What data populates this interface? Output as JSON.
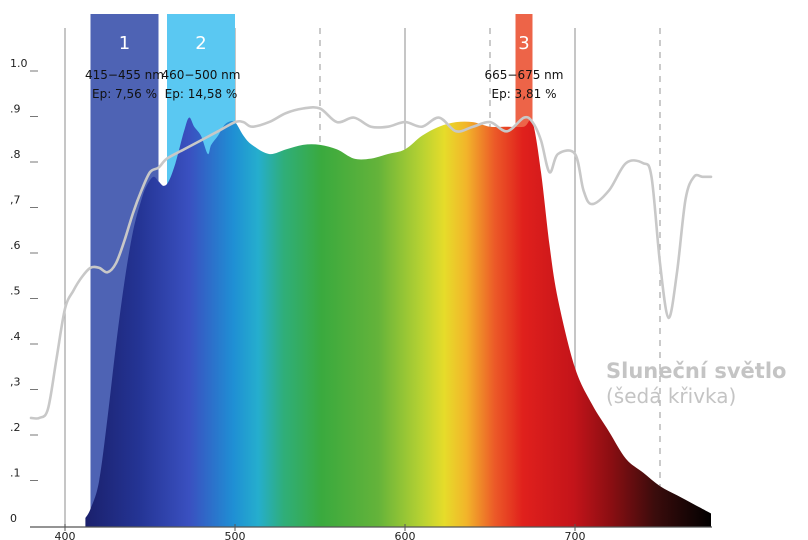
{
  "chart_data": {
    "type": "area",
    "x_axis": {
      "ticks": [
        400,
        500,
        600,
        700
      ],
      "range": [
        380,
        780
      ]
    },
    "y_axis": {
      "ticks": [
        "0",
        ".1",
        ".2",
        ",3",
        ".4",
        ".5",
        ".6",
        ",7",
        ".8",
        ".9",
        "1.0"
      ],
      "range": [
        0,
        1.0
      ]
    },
    "grid": "vertical",
    "bands": [
      {
        "number": "1",
        "range_label": "415−455 nm",
        "ep_label": "Ep: 7,56 %",
        "x_start": 415,
        "x_end": 455,
        "color": "#4e63b4"
      },
      {
        "number": "2",
        "range_label": "460−500 nm",
        "ep_label": "Ep: 14,58 %",
        "x_start": 460,
        "x_end": 500,
        "color": "#5ac8f2"
      },
      {
        "number": "3",
        "range_label": "665−675 nm",
        "ep_label": "Ep: 3,81 %",
        "x_start": 665,
        "x_end": 675,
        "color": "#ed6448"
      }
    ],
    "series": [
      {
        "name": "",
        "style": "spectrum-filled-area",
        "x": [
          412,
          415,
          420,
          425,
          430,
          435,
          440,
          445,
          448,
          452,
          455,
          458,
          461,
          465,
          470,
          473,
          476,
          480,
          484,
          486,
          490,
          493,
          496,
          500,
          505,
          510,
          520,
          530,
          540,
          550,
          560,
          570,
          580,
          590,
          600,
          610,
          620,
          630,
          640,
          650,
          660,
          670,
          675,
          680,
          685,
          690,
          700,
          710,
          720,
          730,
          740,
          750,
          760,
          770,
          780
        ],
        "y": [
          0.0,
          0.02,
          0.08,
          0.22,
          0.38,
          0.52,
          0.63,
          0.7,
          0.73,
          0.75,
          0.74,
          0.73,
          0.74,
          0.78,
          0.85,
          0.88,
          0.86,
          0.84,
          0.8,
          0.82,
          0.84,
          0.86,
          0.87,
          0.87,
          0.84,
          0.82,
          0.8,
          0.81,
          0.82,
          0.82,
          0.81,
          0.79,
          0.79,
          0.8,
          0.81,
          0.84,
          0.86,
          0.87,
          0.87,
          0.86,
          0.86,
          0.86,
          0.87,
          0.76,
          0.6,
          0.48,
          0.33,
          0.25,
          0.19,
          0.13,
          0.1,
          0.07,
          0.05,
          0.03,
          0.01
        ]
      },
      {
        "name": "Sluneční světlo",
        "style": "gray-line",
        "x": [
          380,
          385,
          390,
          395,
          400,
          405,
          410,
          415,
          420,
          425,
          430,
          435,
          440,
          445,
          450,
          455,
          460,
          470,
          480,
          490,
          500,
          505,
          510,
          520,
          530,
          540,
          550,
          560,
          570,
          580,
          590,
          600,
          610,
          620,
          630,
          640,
          650,
          660,
          670,
          675,
          680,
          685,
          690,
          700,
          705,
          710,
          720,
          730,
          740,
          745,
          750,
          755,
          760,
          765,
          770,
          775,
          780
        ],
        "y": [
          0.22,
          0.22,
          0.24,
          0.35,
          0.46,
          0.5,
          0.53,
          0.55,
          0.55,
          0.54,
          0.56,
          0.61,
          0.67,
          0.72,
          0.76,
          0.77,
          0.79,
          0.81,
          0.83,
          0.85,
          0.87,
          0.87,
          0.86,
          0.87,
          0.89,
          0.9,
          0.9,
          0.87,
          0.88,
          0.86,
          0.86,
          0.87,
          0.86,
          0.88,
          0.85,
          0.86,
          0.87,
          0.85,
          0.88,
          0.87,
          0.83,
          0.76,
          0.8,
          0.8,
          0.72,
          0.69,
          0.72,
          0.78,
          0.78,
          0.75,
          0.56,
          0.44,
          0.54,
          0.7,
          0.75,
          0.75,
          0.75
        ]
      }
    ],
    "legend": {
      "title": "Sluneční světlo",
      "subtitle": "(šedá křivka)",
      "position": "right"
    }
  }
}
